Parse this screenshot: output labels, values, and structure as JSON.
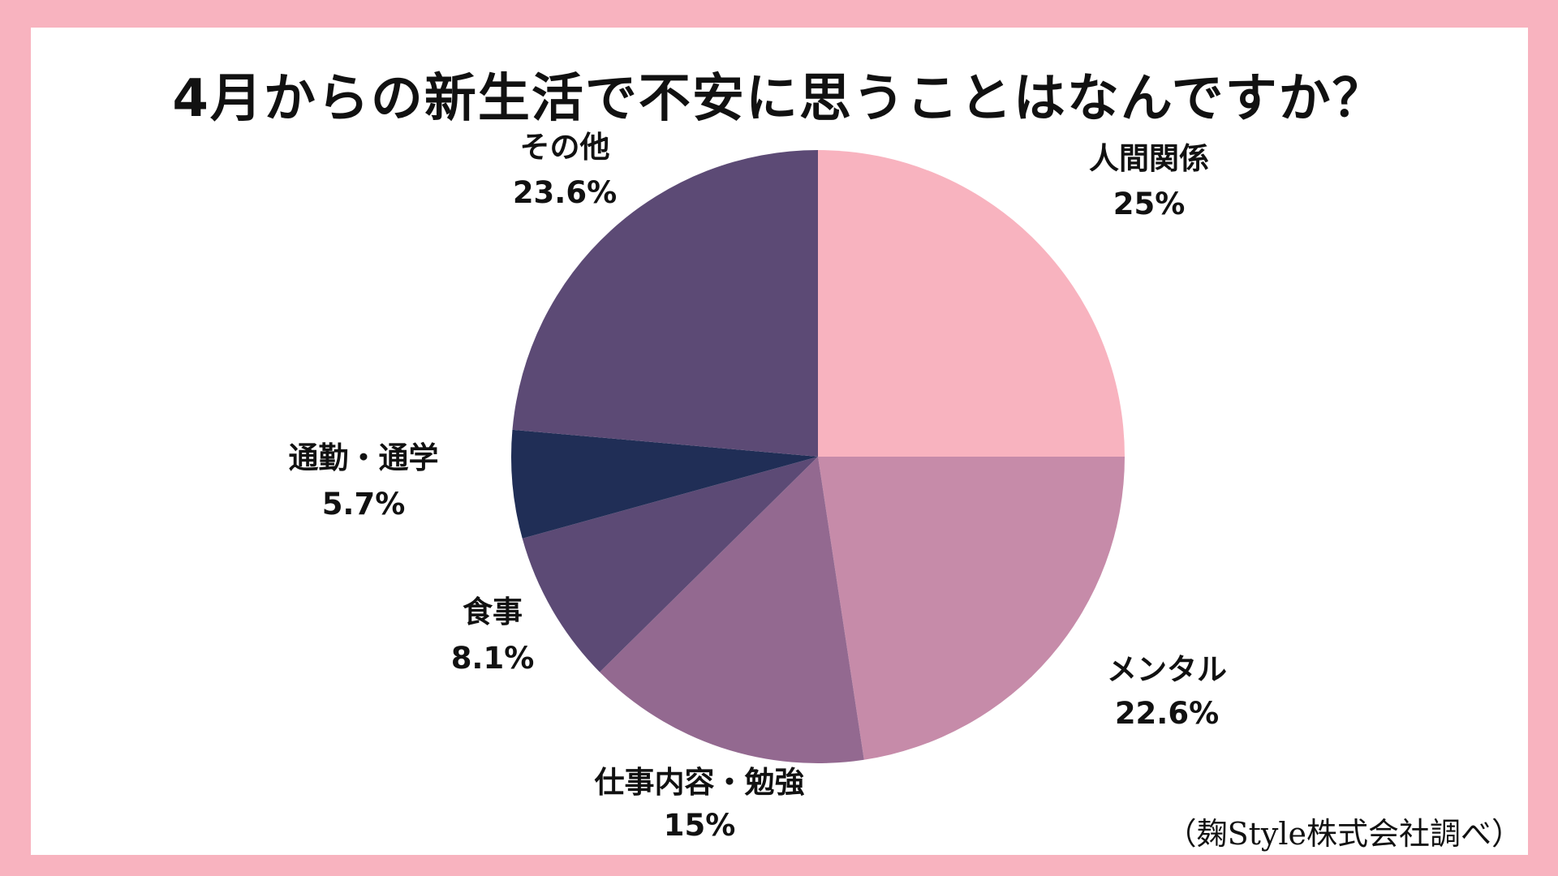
{
  "title": "4月からの新生活で不安に思うことはなんですか？",
  "source_note": "（麹Style株式会社調べ）",
  "colors": {
    "background_border": "#f8b3bf",
    "panel": "#ffffff",
    "text": "#111111"
  },
  "chart_data": {
    "type": "pie",
    "title": "4月からの新生活で不安に思うことはなんですか？",
    "start": "12 o'clock",
    "direction": "clockwise",
    "slices": [
      {
        "label": "人間関係",
        "value": 25,
        "value_label": "25%",
        "color": "#f8b3bf"
      },
      {
        "label": "メンタル",
        "value": 22.6,
        "value_label": "22.6%",
        "color": "#c68ba9"
      },
      {
        "label": "仕事内容・勉強",
        "value": 15,
        "value_label": "15%",
        "color": "#936990"
      },
      {
        "label": "食事",
        "value": 8.1,
        "value_label": "8.1%",
        "color": "#5c4a75"
      },
      {
        "label": "通勤・通学",
        "value": 5.7,
        "value_label": "5.7%",
        "color": "#202e56"
      },
      {
        "label": "その他",
        "value": 23.6,
        "value_label": "23.6%",
        "color": "#5c4a75"
      }
    ]
  }
}
